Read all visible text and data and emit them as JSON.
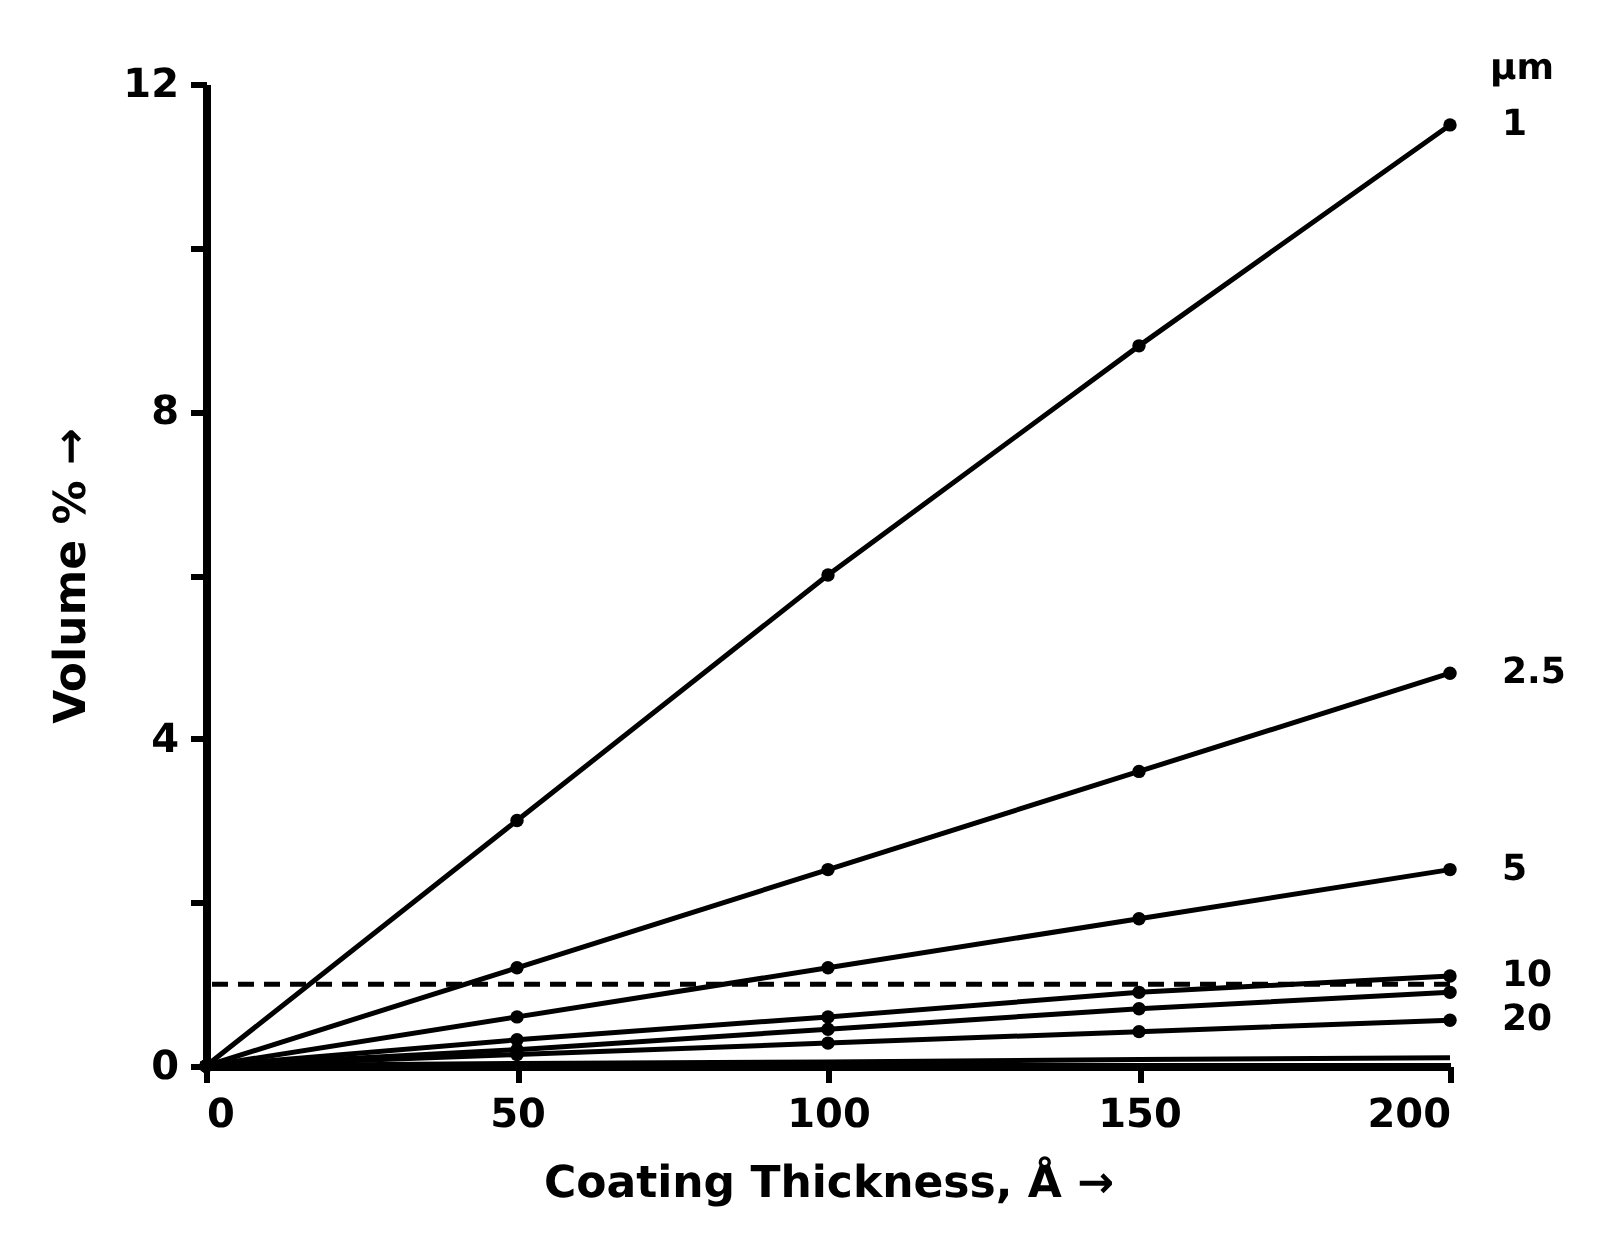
{
  "chart_data": {
    "type": "line",
    "xlabel": "Coating Thickness,  Å →",
    "ylabel": "Volume % →",
    "legend_title": "µm",
    "x": [
      0,
      50,
      100,
      150,
      200
    ],
    "series": [
      {
        "name": "1",
        "color": "#000000",
        "values": [
          0,
          3,
          6,
          8.8,
          11.5
        ]
      },
      {
        "name": "2.5",
        "color": "#000000",
        "values": [
          0,
          1.2,
          2.4,
          3.6,
          4.8
        ]
      },
      {
        "name": "5",
        "color": "#000000",
        "values": [
          0,
          0.6,
          1.2,
          1.8,
          2.4
        ]
      },
      {
        "name": "10",
        "color": "#000000",
        "values": [
          0,
          0.32,
          0.6,
          0.9,
          1.1
        ]
      },
      {
        "color": "#000000",
        "values": [
          0,
          0.2,
          0.45,
          0.7,
          0.9
        ]
      },
      {
        "name": "20",
        "color": "#000000",
        "values": [
          0,
          0.14,
          0.28,
          0.42,
          0.56
        ]
      },
      {
        "color": "#000000",
        "marker": "none",
        "values": [
          0,
          0.03,
          0.05,
          0.08,
          0.1
        ]
      }
    ],
    "xlim": [
      0,
      200
    ],
    "xticks": [
      0,
      50,
      100,
      150,
      200
    ],
    "ylim": [
      0,
      12
    ],
    "yticks": [
      0,
      {
        "value": 2,
        "label": null
      },
      4,
      {
        "value": 6,
        "label": null
      },
      8,
      {
        "value": 10,
        "label": null
      },
      12
    ],
    "ref_lines": [
      {
        "axis": "y",
        "value": 1,
        "line_style": "dashed"
      }
    ],
    "marker": "circle",
    "line_style": "solid",
    "grid": false
  }
}
